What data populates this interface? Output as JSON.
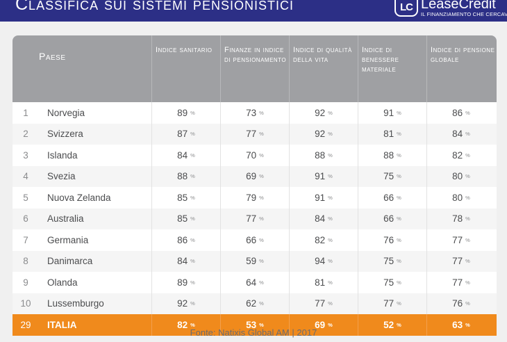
{
  "header": {
    "title": "Classifica sui sistemi pensionistici",
    "logo_mark": "LC",
    "logo_name": "LeaseCredit",
    "logo_tagline": "IL FINANZIAMENTO CHE CERCAVI"
  },
  "table": {
    "columns": {
      "country": "Paese",
      "c1": "Indice sanitario",
      "c2": "Finanze in indice di pensionamento",
      "c3": "Indice di qualità della vita",
      "c4": "Indice di benessere materiale",
      "c5": "Indice di pensione globale"
    },
    "percent_symbol": "%",
    "rows": [
      {
        "rank": "1",
        "country": "Norvegia",
        "v1": "89",
        "v2": "73",
        "v3": "92",
        "v4": "91",
        "v5": "86"
      },
      {
        "rank": "2",
        "country": "Svizzera",
        "v1": "87",
        "v2": "77",
        "v3": "92",
        "v4": "81",
        "v5": "84"
      },
      {
        "rank": "3",
        "country": "Islanda",
        "v1": "84",
        "v2": "70",
        "v3": "88",
        "v4": "88",
        "v5": "82"
      },
      {
        "rank": "4",
        "country": "Svezia",
        "v1": "88",
        "v2": "69",
        "v3": "91",
        "v4": "75",
        "v5": "80"
      },
      {
        "rank": "5",
        "country": "Nuova Zelanda",
        "v1": "85",
        "v2": "79",
        "v3": "91",
        "v4": "66",
        "v5": "80"
      },
      {
        "rank": "6",
        "country": "Australia",
        "v1": "85",
        "v2": "77",
        "v3": "84",
        "v4": "66",
        "v5": "78"
      },
      {
        "rank": "7",
        "country": "Germania",
        "v1": "86",
        "v2": "66",
        "v3": "82",
        "v4": "76",
        "v5": "77"
      },
      {
        "rank": "8",
        "country": "Danimarca",
        "v1": "84",
        "v2": "59",
        "v3": "94",
        "v4": "75",
        "v5": "77"
      },
      {
        "rank": "9",
        "country": "Olanda",
        "v1": "89",
        "v2": "64",
        "v3": "81",
        "v4": "75",
        "v5": "77"
      },
      {
        "rank": "10",
        "country": "Lussemburgo",
        "v1": "92",
        "v2": "62",
        "v3": "77",
        "v4": "77",
        "v5": "76"
      }
    ],
    "highlight": {
      "rank": "29",
      "country": "ITALIA",
      "v1": "82",
      "v2": "53",
      "v3": "69",
      "v4": "52",
      "v5": "63"
    }
  },
  "footer": {
    "source_label": "Fonte:",
    "source_name": "Natixis Global AM",
    "separator": "|",
    "year": "2017"
  },
  "colors": {
    "header_bg": "#2c2f86",
    "table_header_bg": "#9fa0a3",
    "highlight_bg": "#f08a1c"
  }
}
